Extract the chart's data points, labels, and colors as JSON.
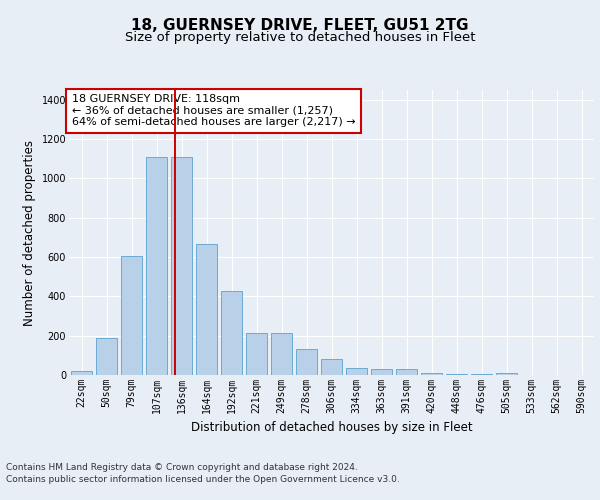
{
  "title": "18, GUERNSEY DRIVE, FLEET, GU51 2TG",
  "subtitle": "Size of property relative to detached houses in Fleet",
  "xlabel": "Distribution of detached houses by size in Fleet",
  "ylabel": "Number of detached properties",
  "categories": [
    "22sqm",
    "50sqm",
    "79sqm",
    "107sqm",
    "136sqm",
    "164sqm",
    "192sqm",
    "221sqm",
    "249sqm",
    "278sqm",
    "306sqm",
    "334sqm",
    "363sqm",
    "391sqm",
    "420sqm",
    "448sqm",
    "476sqm",
    "505sqm",
    "533sqm",
    "562sqm",
    "590sqm"
  ],
  "values": [
    18,
    190,
    607,
    1110,
    1110,
    667,
    425,
    215,
    215,
    130,
    80,
    35,
    30,
    28,
    12,
    7,
    3,
    10,
    0,
    0,
    0
  ],
  "bar_color": "#b8d0e8",
  "bar_edge_color": "#6aaad4",
  "vline_x": 3.75,
  "vline_color": "#cc0000",
  "annotation_text": "18 GUERNSEY DRIVE: 118sqm\n← 36% of detached houses are smaller (1,257)\n64% of semi-detached houses are larger (2,217) →",
  "annotation_box_color": "#ffffff",
  "annotation_box_edge": "#cc0000",
  "ylim": [
    0,
    1450
  ],
  "yticks": [
    0,
    200,
    400,
    600,
    800,
    1000,
    1200,
    1400
  ],
  "bg_color": "#e8eef5",
  "plot_bg_color": "#e8eef5",
  "footer_line1": "Contains HM Land Registry data © Crown copyright and database right 2024.",
  "footer_line2": "Contains public sector information licensed under the Open Government Licence v3.0.",
  "title_fontsize": 11,
  "subtitle_fontsize": 9.5,
  "axis_label_fontsize": 8.5,
  "tick_fontsize": 7,
  "annotation_fontsize": 8,
  "footer_fontsize": 6.5
}
